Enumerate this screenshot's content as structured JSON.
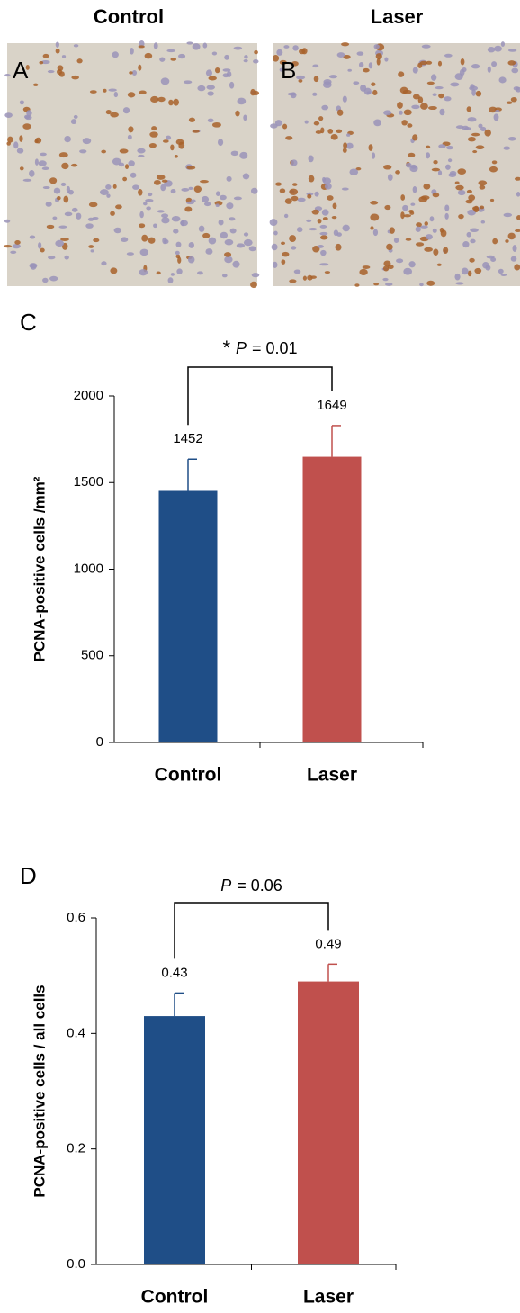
{
  "panels": [
    {
      "title": "Control",
      "letter": "A"
    },
    {
      "title": "Laser",
      "letter": "B"
    }
  ],
  "chart_data": [
    {
      "type": "bar",
      "panel_letter": "C",
      "ylabel": "PCNA-positive cells /mm²",
      "categories": [
        "Control",
        "Laser"
      ],
      "series": [
        {
          "values": [
            1452,
            1649
          ],
          "errors": [
            183,
            180
          ],
          "colors": [
            "#1f4e87",
            "#c0504d"
          ]
        }
      ],
      "ylim": [
        0,
        2000
      ],
      "yticks": [
        0,
        500,
        1000,
        1500,
        2000
      ],
      "annotation": {
        "prefix": "*",
        "p": "P",
        "text": "= 0.01"
      }
    },
    {
      "type": "bar",
      "panel_letter": "D",
      "ylabel": "PCNA-positive cells / all cells",
      "categories": [
        "Control",
        "Laser"
      ],
      "series": [
        {
          "values": [
            0.43,
            0.49
          ],
          "value_labels": [
            "0.43",
            "0.49"
          ],
          "errors": [
            0.04,
            0.03
          ],
          "colors": [
            "#1f4e87",
            "#c0504d"
          ]
        }
      ],
      "ylim": [
        0,
        0.6
      ],
      "yticks": [
        {
          "value": 0,
          "label": "0.0"
        },
        0.2,
        0.4,
        0.6
      ],
      "annotation": {
        "p": "P",
        "text": "= 0.06"
      }
    }
  ]
}
